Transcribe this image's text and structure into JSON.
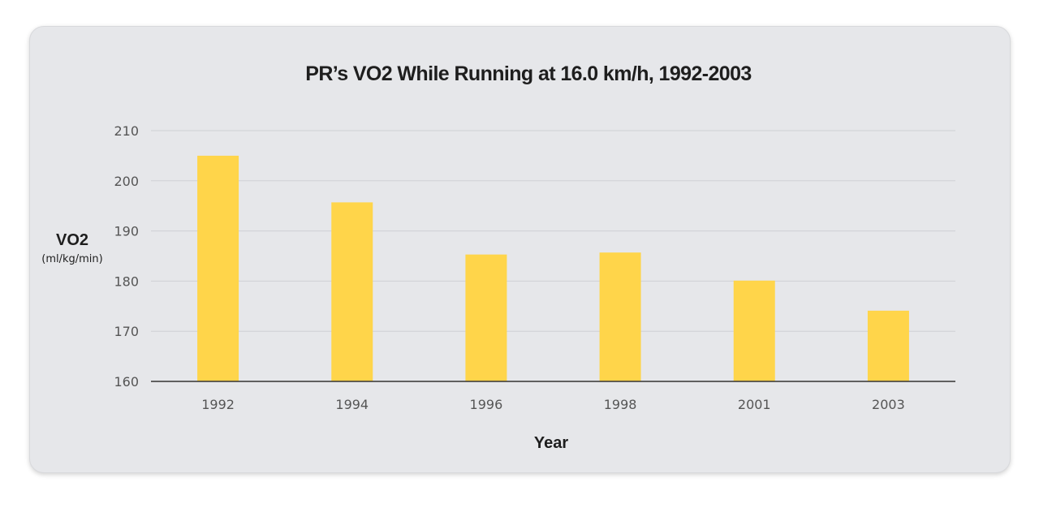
{
  "chart_data": {
    "type": "bar",
    "title": "PR’s VO2 While Running at 16.0 km/h, 1992-2003",
    "xlabel": "Year",
    "ylabel": "VO2",
    "ylabel_unit": "(ml/kg/min)",
    "categories": [
      "1992",
      "1994",
      "1996",
      "1998",
      "2001",
      "2003"
    ],
    "values": [
      205,
      195.7,
      185.3,
      185.7,
      180.1,
      174.1
    ],
    "ylim": [
      160,
      210
    ],
    "yticks": [
      "160",
      "170",
      "180",
      "190",
      "200",
      "210"
    ],
    "grid": true,
    "colors": {
      "bar": "#ffd54a",
      "grid": "#cfd0d4",
      "axis": "#333333",
      "background": "#e6e7ea"
    }
  }
}
